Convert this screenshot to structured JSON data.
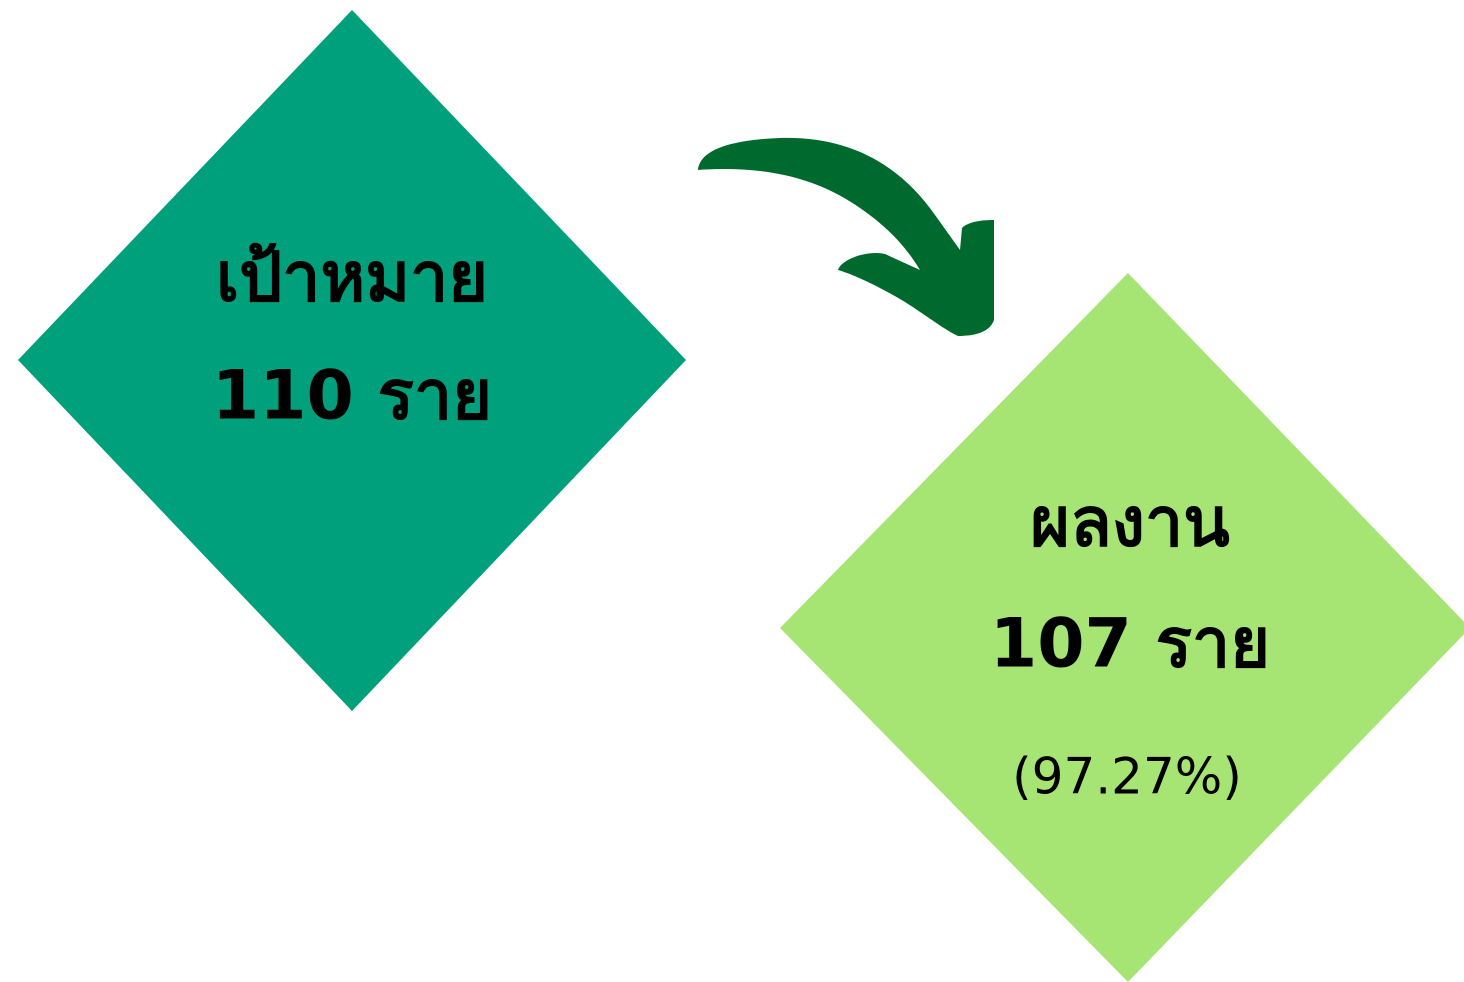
{
  "target": {
    "label": "เป้าหมาย",
    "amount": "110 ราย"
  },
  "result": {
    "label": "ผลงาน",
    "amount": "107 ราย",
    "percent": "(97.27%)"
  }
}
